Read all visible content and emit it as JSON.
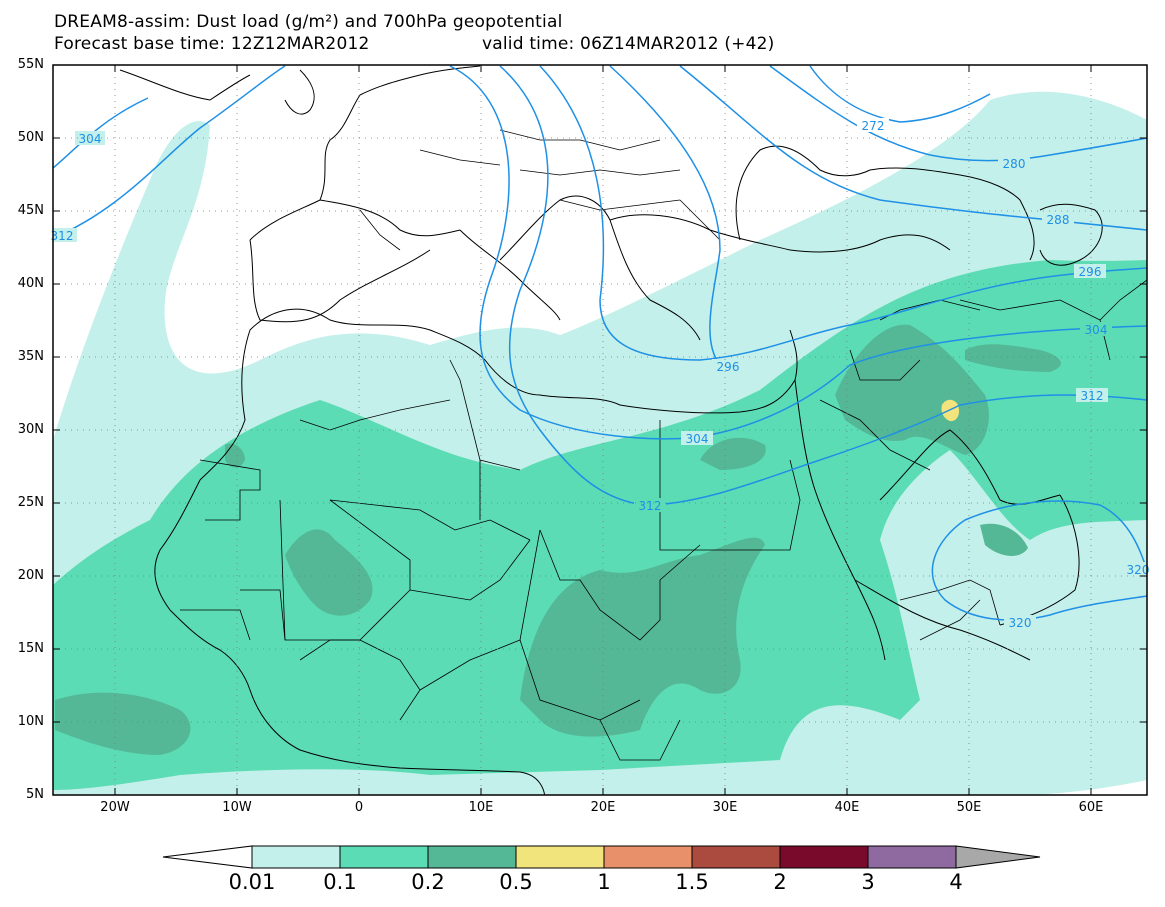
{
  "title_line1": "DREAM8-assim: Dust load (g/m²) and 700hPa geopotential",
  "title_line2_base": "Forecast base time: 12Z12MAR2012",
  "title_line2_valid": "valid time: 06Z14MAR2012 (+42)",
  "lat_labels": [
    "55N",
    "50N",
    "45N",
    "40N",
    "35N",
    "30N",
    "25N",
    "20N",
    "15N",
    "10N",
    "5N"
  ],
  "lon_labels": [
    "20W",
    "10W",
    "0",
    "10E",
    "20E",
    "30E",
    "40E",
    "50E",
    "60E"
  ],
  "contour_labels": [
    "304",
    "312",
    "272",
    "280",
    "288",
    "296",
    "304",
    "296",
    "312",
    "304",
    "312",
    "320",
    "320"
  ],
  "colorbar_labels": [
    "0.01",
    "0.1",
    "0.2",
    "0.5",
    "1",
    "1.5",
    "2",
    "3",
    "4"
  ],
  "colors": {
    "c001": "#c3f0ea",
    "c01": "#5cdcb4",
    "c02": "#54b896",
    "c05": "#f2e47c",
    "c1": "#e8906a",
    "c15": "#ab4a3e",
    "c2": "#7a0a2c",
    "c3": "#8e6aa0",
    "c4": "#a8a8a8",
    "contour": "#1e90e6"
  }
}
